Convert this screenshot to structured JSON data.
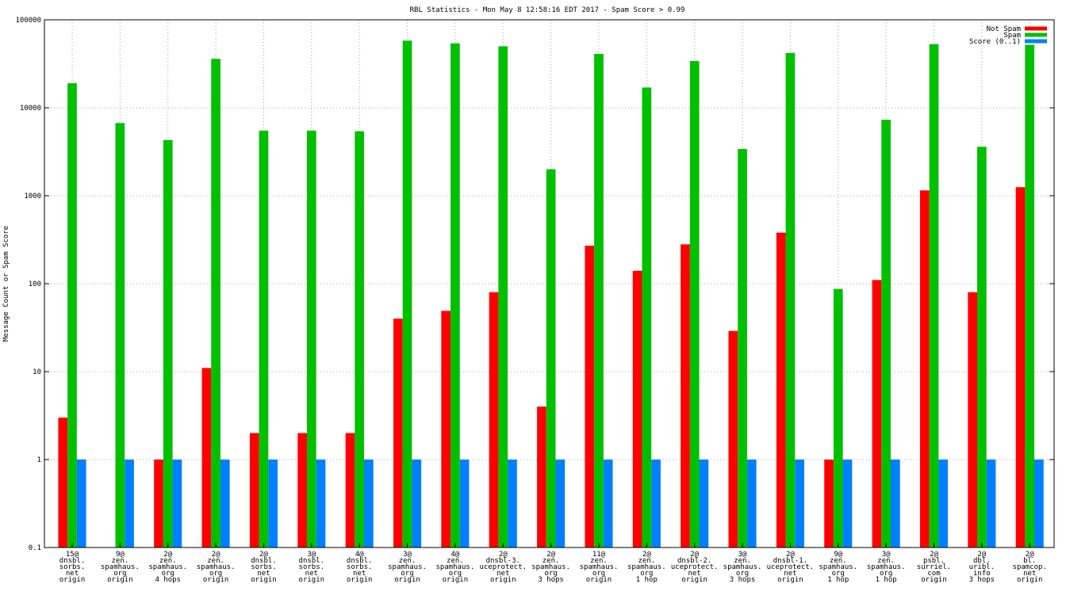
{
  "chart_data": {
    "type": "bar",
    "title": "RBL Statistics - Mon May  8 12:58:16 EDT 2017 - Spam Score > 0.99",
    "xlabel": "",
    "ylabel": "Message Count or Spam Score",
    "yscale": "log",
    "ylim": [
      0.1,
      100000
    ],
    "yticks": [
      "0.1",
      "1",
      "10",
      "100",
      "1000",
      "10000",
      "100000"
    ],
    "grid": true,
    "legend_position": "top-right",
    "categories": [
      [
        "15@",
        "dnsbl.",
        "sorbs.",
        "net",
        "origin"
      ],
      [
        "9@",
        "zen.",
        "spamhaus.",
        "org",
        "origin"
      ],
      [
        "2@",
        "zen.",
        "spamhaus.",
        "org",
        "4 hops"
      ],
      [
        "2@",
        "zen.",
        "spamhaus.",
        "org",
        "origin"
      ],
      [
        "2@",
        "dnsbl.",
        "sorbs.",
        "net",
        "origin"
      ],
      [
        "3@",
        "dnsbl.",
        "sorbs.",
        "net",
        "origin"
      ],
      [
        "4@",
        "dnsbl.",
        "sorbs.",
        "net",
        "origin"
      ],
      [
        "3@",
        "zen.",
        "spamhaus.",
        "org",
        "origin"
      ],
      [
        "4@",
        "zen.",
        "spamhaus.",
        "org",
        "origin"
      ],
      [
        "2@",
        "dnsbl-3.",
        "uceprotect.",
        "net",
        "origin"
      ],
      [
        "2@",
        "zen.",
        "spamhaus.",
        "org",
        "3 hops"
      ],
      [
        "11@",
        "zen.",
        "spamhaus.",
        "org",
        "origin"
      ],
      [
        "2@",
        "zen.",
        "spamhaus.",
        "org",
        "1 hop"
      ],
      [
        "2@",
        "dnsbl-2.",
        "uceprotect.",
        "net",
        "origin"
      ],
      [
        "3@",
        "zen.",
        "spamhaus.",
        "org",
        "3 hops"
      ],
      [
        "2@",
        "dnsbl-1.",
        "uceprotect.",
        "net",
        "origin"
      ],
      [
        "9@",
        "zen.",
        "spamhaus.",
        "org",
        "1 hop"
      ],
      [
        "3@",
        "zen.",
        "spamhaus.",
        "org",
        "1 hop"
      ],
      [
        "2@",
        "psbl.",
        "surriel.",
        "com",
        "origin"
      ],
      [
        "2@",
        "dbl.",
        "uribl.",
        "info",
        "3 hops"
      ],
      [
        "2@",
        "bl.",
        "spamcop.",
        "net",
        "origin"
      ]
    ],
    "series": [
      {
        "name": "Not Spam",
        "color": "#ff0000",
        "values": [
          3,
          null,
          1,
          11,
          2,
          2,
          2,
          40,
          49,
          80,
          4,
          270,
          140,
          280,
          29,
          380,
          1,
          110,
          1150,
          80,
          1250
        ]
      },
      {
        "name": "Spam",
        "color": "#00c000",
        "values": [
          19000,
          6700,
          4300,
          36000,
          5500,
          5500,
          5400,
          58000,
          54000,
          50000,
          2000,
          41000,
          17000,
          34000,
          3400,
          42000,
          87,
          7300,
          53000,
          3600,
          52000
        ]
      },
      {
        "name": "Score (0..1)",
        "color": "#0080ff",
        "values": [
          1,
          1,
          1,
          1,
          1,
          1,
          1,
          1,
          1,
          1,
          1,
          1,
          1,
          1,
          1,
          1,
          1,
          1,
          1,
          1,
          1
        ]
      }
    ]
  }
}
